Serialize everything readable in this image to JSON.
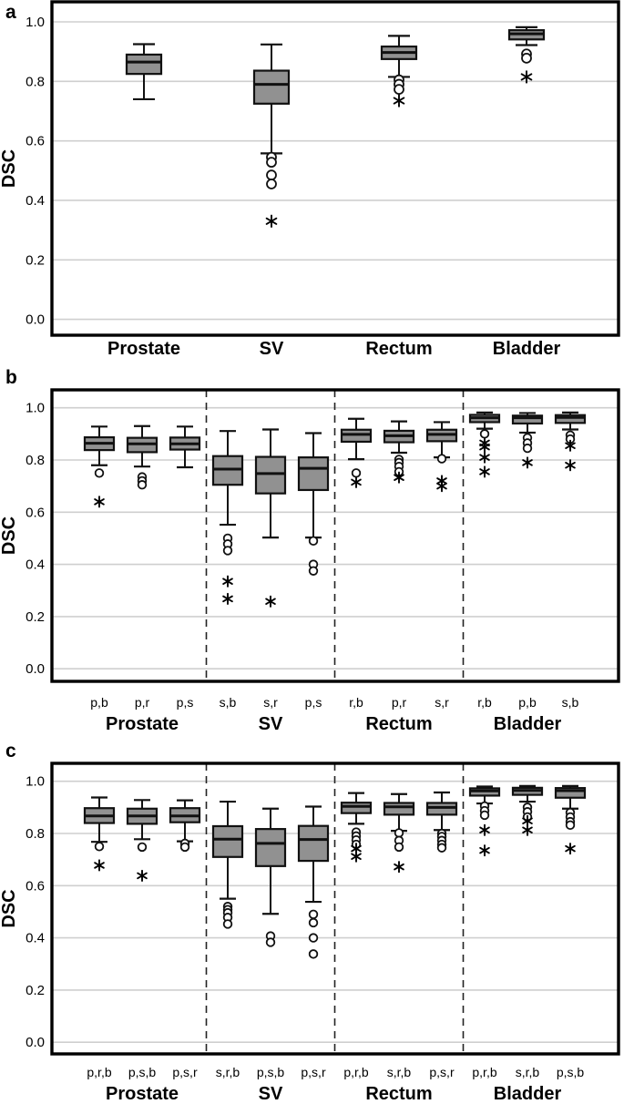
{
  "figure": {
    "background": "#ffffff",
    "box_fill": "#919191",
    "box_stroke": "#111111",
    "grid_color": "#cfcfcf",
    "separator_color": "#222222",
    "text_color": "#000000",
    "y_axis_title": "DSC",
    "ytick_labels": [
      "0.0",
      "0.2",
      "0.4",
      "0.6",
      "0.8",
      "1.0"
    ],
    "ytick_values": [
      0.0,
      0.2,
      0.4,
      0.6,
      0.8,
      1.0
    ]
  },
  "chart_data": [
    {
      "type": "boxplot",
      "panel": "a",
      "ylabel": "DSC",
      "ylim": [
        -0.05,
        1.07
      ],
      "grid": true,
      "groups": [
        {
          "label": "Prostate",
          "boxes": [
            {
              "label": "",
              "lo": 0.74,
              "q1": 0.825,
              "med": 0.865,
              "q3": 0.89,
              "hi": 0.925,
              "circles": [],
              "stars": []
            }
          ]
        },
        {
          "label": "SV",
          "boxes": [
            {
              "label": "",
              "lo": 0.558,
              "q1": 0.725,
              "med": 0.79,
              "q3": 0.836,
              "hi": 0.924,
              "circles": [
                0.545,
                0.528,
                0.485,
                0.455
              ],
              "stars": [
                0.33
              ]
            }
          ]
        },
        {
          "label": "Rectum",
          "boxes": [
            {
              "label": "",
              "lo": 0.815,
              "q1": 0.875,
              "med": 0.897,
              "q3": 0.917,
              "hi": 0.953,
              "circles": [
                0.805,
                0.79,
                0.773
              ],
              "stars": [
                0.735
              ]
            }
          ]
        },
        {
          "label": "Bladder",
          "boxes": [
            {
              "label": "",
              "lo": 0.922,
              "q1": 0.941,
              "med": 0.96,
              "q3": 0.972,
              "hi": 0.982,
              "circles": [
                0.892,
                0.878
              ],
              "stars": [
                0.815
              ]
            }
          ]
        }
      ]
    },
    {
      "type": "boxplot",
      "panel": "b",
      "ylabel": "DSC",
      "ylim": [
        -0.05,
        1.07
      ],
      "grid": true,
      "groups": [
        {
          "label": "Prostate",
          "boxes": [
            {
              "label": "p,b",
              "lo": 0.78,
              "q1": 0.838,
              "med": 0.864,
              "q3": 0.887,
              "hi": 0.928,
              "circles": [
                0.75
              ],
              "stars": [
                0.64
              ]
            },
            {
              "label": "p,r",
              "lo": 0.775,
              "q1": 0.83,
              "med": 0.862,
              "q3": 0.885,
              "hi": 0.93,
              "circles": [
                0.735,
                0.72,
                0.705
              ],
              "stars": []
            },
            {
              "label": "p,s",
              "lo": 0.772,
              "q1": 0.84,
              "med": 0.862,
              "q3": 0.886,
              "hi": 0.928,
              "circles": [],
              "stars": []
            }
          ]
        },
        {
          "label": "SV",
          "boxes": [
            {
              "label": "s,b",
              "lo": 0.552,
              "q1": 0.705,
              "med": 0.765,
              "q3": 0.815,
              "hi": 0.911,
              "circles": [
                0.5,
                0.478,
                0.453
              ],
              "stars": [
                0.335,
                0.268
              ]
            },
            {
              "label": "s,r",
              "lo": 0.503,
              "q1": 0.672,
              "med": 0.748,
              "q3": 0.812,
              "hi": 0.917,
              "circles": [],
              "stars": [
                0.258
              ]
            },
            {
              "label": "p,s",
              "lo": 0.503,
              "q1": 0.685,
              "med": 0.768,
              "q3": 0.81,
              "hi": 0.903,
              "circles": [
                0.49,
                0.4,
                0.375
              ],
              "stars": []
            }
          ]
        },
        {
          "label": "Rectum",
          "boxes": [
            {
              "label": "r,b",
              "lo": 0.803,
              "q1": 0.87,
              "med": 0.898,
              "q3": 0.916,
              "hi": 0.958,
              "circles": [
                0.75
              ],
              "stars": [
                0.715
              ]
            },
            {
              "label": "p,r",
              "lo": 0.828,
              "q1": 0.868,
              "med": 0.893,
              "q3": 0.912,
              "hi": 0.948,
              "circles": [
                0.802,
                0.79,
                0.775,
                0.755
              ],
              "stars": [
                0.733
              ]
            },
            {
              "label": "s,r",
              "lo": 0.81,
              "q1": 0.872,
              "med": 0.898,
              "q3": 0.916,
              "hi": 0.945,
              "circles": [
                0.805
              ],
              "stars": [
                0.72,
                0.7
              ]
            }
          ]
        },
        {
          "label": "Bladder",
          "boxes": [
            {
              "label": "r,b",
              "lo": 0.92,
              "q1": 0.945,
              "med": 0.962,
              "q3": 0.973,
              "hi": 0.982,
              "circles": [
                0.9
              ],
              "stars": [
                0.865,
                0.85,
                0.81,
                0.755
              ]
            },
            {
              "label": "p,b",
              "lo": 0.905,
              "q1": 0.94,
              "med": 0.962,
              "q3": 0.97,
              "hi": 0.98,
              "circles": [
                0.885,
                0.865,
                0.845
              ],
              "stars": [
                0.79
              ]
            },
            {
              "label": "s,b",
              "lo": 0.917,
              "q1": 0.942,
              "med": 0.963,
              "q3": 0.972,
              "hi": 0.982,
              "circles": [
                0.895,
                0.88
              ],
              "stars": [
                0.855,
                0.78
              ]
            }
          ]
        }
      ]
    },
    {
      "type": "boxplot",
      "panel": "c",
      "ylabel": "DSC",
      "ylim": [
        -0.05,
        1.07
      ],
      "grid": true,
      "groups": [
        {
          "label": "Prostate",
          "boxes": [
            {
              "label": "p,r,b",
              "lo": 0.768,
              "q1": 0.84,
              "med": 0.867,
              "q3": 0.897,
              "hi": 0.938,
              "circles": [
                0.75
              ],
              "stars": [
                0.678
              ]
            },
            {
              "label": "p,s,b",
              "lo": 0.778,
              "q1": 0.837,
              "med": 0.867,
              "q3": 0.895,
              "hi": 0.928,
              "circles": [
                0.748
              ],
              "stars": [
                0.638
              ]
            },
            {
              "label": "p,s,r",
              "lo": 0.77,
              "q1": 0.843,
              "med": 0.867,
              "q3": 0.897,
              "hi": 0.927,
              "circles": [
                0.762,
                0.748
              ],
              "stars": []
            }
          ]
        },
        {
          "label": "SV",
          "boxes": [
            {
              "label": "s,r,b",
              "lo": 0.55,
              "q1": 0.71,
              "med": 0.778,
              "q3": 0.828,
              "hi": 0.922,
              "circles": [
                0.52,
                0.508,
                0.496,
                0.478,
                0.453
              ],
              "stars": []
            },
            {
              "label": "p,s,b",
              "lo": 0.492,
              "q1": 0.675,
              "med": 0.762,
              "q3": 0.817,
              "hi": 0.895,
              "circles": [
                0.407,
                0.383
              ],
              "stars": []
            },
            {
              "label": "p,s,r",
              "lo": 0.538,
              "q1": 0.695,
              "med": 0.777,
              "q3": 0.829,
              "hi": 0.903,
              "circles": [
                0.49,
                0.458,
                0.4,
                0.338
              ],
              "stars": []
            }
          ]
        },
        {
          "label": "Rectum",
          "boxes": [
            {
              "label": "p,r,b",
              "lo": 0.837,
              "q1": 0.878,
              "med": 0.904,
              "q3": 0.918,
              "hi": 0.955,
              "circles": [
                0.805,
                0.79,
                0.775,
                0.758
              ],
              "stars": [
                0.742,
                0.712
              ]
            },
            {
              "label": "s,r,b",
              "lo": 0.81,
              "q1": 0.872,
              "med": 0.902,
              "q3": 0.917,
              "hi": 0.951,
              "circles": [
                0.802,
                0.773,
                0.748
              ],
              "stars": [
                0.672
              ]
            },
            {
              "label": "p,s,r",
              "lo": 0.813,
              "q1": 0.872,
              "med": 0.9,
              "q3": 0.917,
              "hi": 0.957,
              "circles": [
                0.8,
                0.788,
                0.773,
                0.758,
                0.745
              ],
              "stars": []
            }
          ]
        },
        {
          "label": "Bladder",
          "boxes": [
            {
              "label": "p,r,b",
              "lo": 0.915,
              "q1": 0.945,
              "med": 0.963,
              "q3": 0.973,
              "hi": 0.98,
              "circles": [
                0.905,
                0.887,
                0.87
              ],
              "stars": [
                0.813,
                0.735
              ]
            },
            {
              "label": "s,r,b",
              "lo": 0.922,
              "q1": 0.948,
              "med": 0.965,
              "q3": 0.975,
              "hi": 0.982,
              "circles": [
                0.9,
                0.883,
                0.863
              ],
              "stars": [
                0.848,
                0.813
              ]
            },
            {
              "label": "p,s,b",
              "lo": 0.895,
              "q1": 0.937,
              "med": 0.964,
              "q3": 0.974,
              "hi": 0.982,
              "circles": [
                0.88,
                0.863,
                0.845,
                0.832
              ],
              "stars": [
                0.742
              ]
            }
          ]
        }
      ]
    }
  ]
}
